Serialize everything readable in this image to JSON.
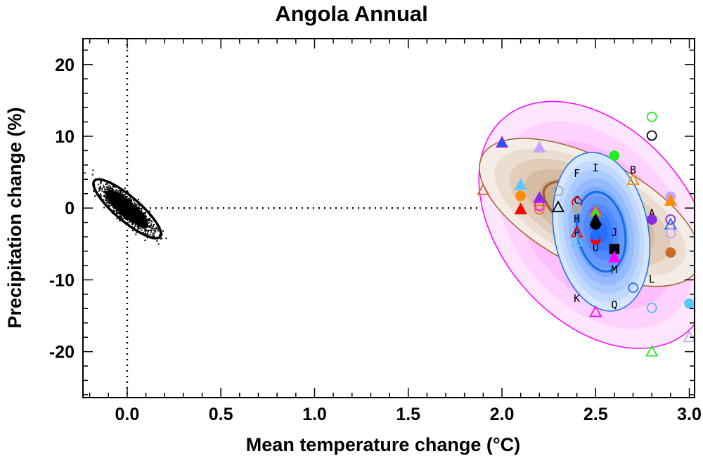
{
  "chart_data": {
    "type": "scatter",
    "title": "Angola Annual",
    "xlabel": "Mean temperature change (°C)",
    "ylabel": "Precipitation change (%)",
    "xlim": [
      -0.236,
      3.028
    ],
    "ylim": [
      -26.4,
      23.6
    ],
    "xticks": [
      0.0,
      0.5,
      1.0,
      1.5,
      2.0,
      2.5,
      3.0
    ],
    "xtick_labels": [
      "0.0",
      "0.5",
      "1.0",
      "1.5",
      "2.0",
      "2.5",
      "3.0"
    ],
    "yticks": [
      20,
      10,
      0,
      -10,
      -20
    ],
    "ytick_labels": [
      "20",
      "10",
      "0",
      "-10",
      "-20"
    ],
    "x_minor_step": 0.1,
    "y_minor_step": 2,
    "reference_lines": {
      "x_zero": true,
      "y_zero_from_x": 0.0,
      "y_zero_to_x": 1.89
    },
    "control_sample": {
      "center": [
        0.0,
        -0.1
      ],
      "sd_x": 0.065,
      "sd_y": 1.5,
      "rho": -0.85,
      "n": 1500,
      "ellipse": {
        "half_x": 0.18,
        "half_y": 4.1,
        "rho": -0.85
      }
    },
    "ellipses": [
      {
        "name": "pink",
        "center": [
          2.5,
          -2.35
        ],
        "half_x": 0.623,
        "half_y": 17.2,
        "rho": -0.37,
        "stroke": "#ff00ff",
        "fills": [
          "#ffe6ff",
          "#ffd2ff",
          "#ffbfff",
          "#ffaaff",
          "#ff96ff",
          "#ff82ff"
        ],
        "bold_level": null
      },
      {
        "name": "brown",
        "center": [
          2.47,
          -0.6
        ],
        "half_x": 0.59,
        "half_y": 10.3,
        "rho": -0.6,
        "stroke": "#a0622d",
        "fills": [
          "#f4ede7",
          "#ebddd0",
          "#e1cdb9",
          "#d6bca2",
          "#cbab8c",
          "#c09a78",
          "#b58a66"
        ],
        "bold_level": 0.42
      },
      {
        "name": "blue",
        "center": [
          2.53,
          -3.3
        ],
        "half_x": 0.259,
        "half_y": 11.05,
        "rho": -0.19,
        "stroke": "#1a6fe8",
        "fills": [
          "#d6e6ff",
          "#c2d9ff",
          "#abcaff",
          "#94baff",
          "#7caaff",
          "#6699ff",
          "#4f8aff",
          "#3a7cff",
          "#2a70ff"
        ],
        "bold_level": 0.5
      }
    ],
    "models": [
      {
        "x": 1.9,
        "y": 2.5,
        "shape": "triangle",
        "filled": false,
        "color": "#cc6a28"
      },
      {
        "x": 2.0,
        "y": 9.1,
        "shape": "triangle",
        "filled": true,
        "color": "#1060ff",
        "edge": "#8a2be2"
      },
      {
        "x": 2.1,
        "y": 3.2,
        "shape": "triangle",
        "filled": true,
        "color": "#5ac8ff"
      },
      {
        "x": 2.1,
        "y": 1.7,
        "shape": "circle",
        "filled": true,
        "color": "#ff8c00"
      },
      {
        "x": 2.1,
        "y": -0.2,
        "shape": "triangle",
        "filled": true,
        "color": "#ff0000"
      },
      {
        "x": 2.2,
        "y": 8.4,
        "shape": "triangle",
        "filled": true,
        "color": "#c8a0ff"
      },
      {
        "x": 2.2,
        "y": 1.4,
        "shape": "triangle",
        "filled": true,
        "color": "#8a2be2"
      },
      {
        "x": 2.2,
        "y": 0.3,
        "shape": "circle",
        "filled": false,
        "color": "#ff00ff"
      },
      {
        "x": 2.2,
        "y": -0.2,
        "shape": "circle",
        "filled": false,
        "color": "#e07820"
      },
      {
        "x": 2.3,
        "y": 2.4,
        "shape": "circle",
        "filled": false,
        "color": "#aaaaaa"
      },
      {
        "x": 2.3,
        "y": 0.1,
        "shape": "triangle",
        "filled": false,
        "color": "#000000"
      },
      {
        "x": 2.4,
        "y": 0.8,
        "shape": "circle",
        "filled": false,
        "color": "#ff0000"
      },
      {
        "x": 2.4,
        "y": -0.1,
        "shape": "circle",
        "filled": true,
        "color": "#aaaaaa"
      },
      {
        "x": 2.4,
        "y": -3.4,
        "shape": "triangle",
        "filled": false,
        "color": "#ff0000"
      },
      {
        "x": 2.4,
        "y": -4.6,
        "shape": "triangle",
        "filled": false,
        "color": "#5ac8ff"
      },
      {
        "x": 2.5,
        "y": -0.6,
        "shape": "circle",
        "filled": false,
        "color": "#ff00ff"
      },
      {
        "x": 2.5,
        "y": -0.5,
        "shape": "triangle",
        "filled": true,
        "color": "#22ee22",
        "edge": "#e07820"
      },
      {
        "x": 2.5,
        "y": -1.7,
        "shape": "triangle",
        "filled": true,
        "color": "#000000"
      },
      {
        "x": 2.5,
        "y": -2.3,
        "shape": "circle",
        "filled": true,
        "color": "#000000"
      },
      {
        "x": 2.5,
        "y": -4.4,
        "shape": "circle",
        "filled": true,
        "color": "#ff0000"
      },
      {
        "x": 2.5,
        "y": -3.8,
        "shape": "circle",
        "filled": true,
        "color": "#1e6fff"
      },
      {
        "x": 2.5,
        "y": -14.5,
        "shape": "triangle",
        "filled": false,
        "color": "#ff00ff"
      },
      {
        "x": 2.6,
        "y": 7.3,
        "shape": "circle",
        "filled": true,
        "color": "#22ee22"
      },
      {
        "x": 2.6,
        "y": -5.7,
        "shape": "square",
        "filled": true,
        "color": "#000000"
      },
      {
        "x": 2.6,
        "y": -6.9,
        "shape": "triangle",
        "filled": true,
        "color": "#ff00ff"
      },
      {
        "x": 2.7,
        "y": 3.9,
        "shape": "triangle",
        "filled": false,
        "color": "#ff8c00"
      },
      {
        "x": 2.7,
        "y": -11.1,
        "shape": "circle",
        "filled": false,
        "color": "#1e6fff"
      },
      {
        "x": 2.8,
        "y": 12.7,
        "shape": "circle",
        "filled": false,
        "color": "#22ee22"
      },
      {
        "x": 2.8,
        "y": 10.1,
        "shape": "circle",
        "filled": false,
        "color": "#000000"
      },
      {
        "x": 2.8,
        "y": -1.6,
        "shape": "circle",
        "filled": true,
        "color": "#8a2be2"
      },
      {
        "x": 2.8,
        "y": -13.9,
        "shape": "circle",
        "filled": false,
        "color": "#5ab8ff"
      },
      {
        "x": 2.8,
        "y": -20.0,
        "shape": "triangle",
        "filled": false,
        "color": "#22ee22"
      },
      {
        "x": 2.9,
        "y": 1.6,
        "shape": "circle",
        "filled": true,
        "color": "#c8a0ff"
      },
      {
        "x": 2.9,
        "y": 1.0,
        "shape": "triangle",
        "filled": true,
        "color": "#ff8c00"
      },
      {
        "x": 2.9,
        "y": -1.6,
        "shape": "circle",
        "filled": false,
        "color": "#8a2be2"
      },
      {
        "x": 2.9,
        "y": -2.3,
        "shape": "triangle",
        "filled": false,
        "color": "#1e6fff"
      },
      {
        "x": 2.9,
        "y": -3.5,
        "shape": "circle",
        "filled": false,
        "color": "#c8a0ff"
      },
      {
        "x": 2.9,
        "y": -6.2,
        "shape": "circle",
        "filled": true,
        "color": "#cc6a28"
      },
      {
        "x": 3.0,
        "y": -13.3,
        "shape": "circle",
        "filled": true,
        "color": "#5ac8ff"
      },
      {
        "x": 3.0,
        "y": -18.0,
        "shape": "triangle",
        "filled": false,
        "color": "#c8a0ff"
      }
    ],
    "letters": [
      {
        "text": "F",
        "x": 2.4,
        "y": 4.9
      },
      {
        "text": "I",
        "x": 2.5,
        "y": 5.7
      },
      {
        "text": "B",
        "x": 2.7,
        "y": 5.4
      },
      {
        "text": "C",
        "x": 2.4,
        "y": 1.2
      },
      {
        "text": "H",
        "x": 2.4,
        "y": -1.4
      },
      {
        "text": "P",
        "x": 2.4,
        "y": -3.3
      },
      {
        "text": "J",
        "x": 2.6,
        "y": -3.3
      },
      {
        "text": "U",
        "x": 2.5,
        "y": -5.4
      },
      {
        "text": "M",
        "x": 2.6,
        "y": -8.5
      },
      {
        "text": "A",
        "x": 2.8,
        "y": -0.6
      },
      {
        "text": "L",
        "x": 2.8,
        "y": -9.8
      },
      {
        "text": "K",
        "x": 2.4,
        "y": -12.5
      },
      {
        "text": "Q",
        "x": 2.6,
        "y": -13.4
      }
    ]
  }
}
